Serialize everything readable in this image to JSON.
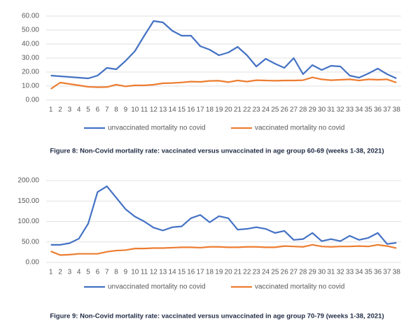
{
  "chart_data": [
    {
      "type": "line",
      "categories": [
        "1",
        "2",
        "3",
        "4",
        "5",
        "6",
        "7",
        "8",
        "9",
        "10",
        "11",
        "12",
        "13",
        "14",
        "15",
        "16",
        "17",
        "18",
        "19",
        "20",
        "21",
        "22",
        "23",
        "24",
        "25",
        "26",
        "27",
        "28",
        "29",
        "30",
        "31",
        "32",
        "33",
        "34",
        "35",
        "36",
        "37",
        "38"
      ],
      "ylim": [
        0,
        60
      ],
      "yticks": [
        {
          "value": 0,
          "label": "0.00"
        },
        {
          "value": 10,
          "label": "10.00"
        },
        {
          "value": 20,
          "label": "20.00"
        },
        {
          "value": 30,
          "label": "30.00"
        },
        {
          "value": 40,
          "label": "40.00"
        },
        {
          "value": 50,
          "label": "50.00"
        },
        {
          "value": 60,
          "label": "60.00"
        }
      ],
      "grid": true,
      "legend": "bottom",
      "series": [
        {
          "name": "unvaccinated mortality no covid",
          "color": "#4472c4",
          "values": [
            17.5,
            17,
            16.5,
            16,
            15.5,
            17.5,
            23,
            22,
            28,
            35,
            46,
            56.5,
            55.5,
            49.5,
            46,
            46,
            38.5,
            36,
            32,
            34,
            38,
            32,
            24,
            29.5,
            26,
            23,
            30,
            18.5,
            25,
            21.5,
            24.5,
            24,
            17.5,
            16,
            19,
            22.5,
            18.5,
            15.5
          ]
        },
        {
          "name": "vaccinated mortality no covid",
          "color": "#ed7d31",
          "values": [
            8,
            12.5,
            11.5,
            10.5,
            9.5,
            9.2,
            9.3,
            11,
            9.8,
            10.5,
            10.5,
            11,
            12,
            12.2,
            12.6,
            13.2,
            13,
            13.7,
            13.8,
            12.8,
            14,
            13.2,
            14.2,
            14,
            13.8,
            14,
            14,
            14.2,
            16.2,
            14.8,
            14.2,
            14.5,
            14.8,
            14,
            14.8,
            14.5,
            14.8,
            12.5
          ]
        }
      ],
      "caption": "Figure 8: Non-Covid mortality rate: vaccinated versus unvaccinated in age group 60-69 (weeks 1-38, 2021)"
    },
    {
      "type": "line",
      "categories": [
        "1",
        "2",
        "3",
        "4",
        "5",
        "6",
        "7",
        "8",
        "9",
        "10",
        "11",
        "12",
        "13",
        "14",
        "15",
        "16",
        "17",
        "18",
        "19",
        "20",
        "21",
        "22",
        "23",
        "24",
        "25",
        "26",
        "27",
        "28",
        "29",
        "30",
        "31",
        "32",
        "33",
        "34",
        "35",
        "36",
        "37",
        "38"
      ],
      "ylim": [
        0,
        200
      ],
      "yticks": [
        {
          "value": 0,
          "label": "0.00"
        },
        {
          "value": 50,
          "label": "50.00"
        },
        {
          "value": 100,
          "label": "100.00"
        },
        {
          "value": 150,
          "label": "150.00"
        },
        {
          "value": 200,
          "label": "200.00"
        }
      ],
      "grid": true,
      "legend": "bottom",
      "series": [
        {
          "name": "unvaccinated mortality no covid",
          "color": "#4472c4",
          "values": [
            43,
            43,
            47,
            58,
            95,
            172,
            186,
            158,
            130,
            112,
            100,
            85,
            78,
            86,
            88,
            108,
            116,
            98,
            113,
            108,
            80,
            82,
            86,
            82,
            72,
            77,
            55,
            57,
            72,
            52,
            57,
            52,
            65,
            55,
            60,
            72,
            45,
            48
          ]
        },
        {
          "name": "vaccinated mortality no covid",
          "color": "#ed7d31",
          "values": [
            27,
            18,
            19,
            21,
            21,
            21,
            26,
            29,
            30,
            34,
            34,
            35,
            35,
            36,
            37,
            37,
            36,
            38,
            38,
            37,
            37,
            38,
            38,
            37,
            37,
            40,
            39,
            38,
            43,
            39,
            38,
            39,
            39,
            40,
            39,
            43,
            40,
            35
          ]
        }
      ],
      "caption": "Figure 9: Non-Covid mortality rate: vaccinated versus unvaccinated in age group 70-79 (weeks 1-38, 2021)"
    }
  ]
}
